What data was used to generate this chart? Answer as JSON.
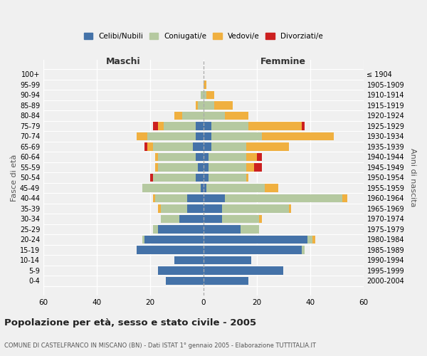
{
  "age_groups": [
    "0-4",
    "5-9",
    "10-14",
    "15-19",
    "20-24",
    "25-29",
    "30-34",
    "35-39",
    "40-44",
    "45-49",
    "50-54",
    "55-59",
    "60-64",
    "65-69",
    "70-74",
    "75-79",
    "80-84",
    "85-89",
    "90-94",
    "95-99",
    "100+"
  ],
  "birth_years": [
    "2000-2004",
    "1995-1999",
    "1990-1994",
    "1985-1989",
    "1980-1984",
    "1975-1979",
    "1970-1974",
    "1965-1969",
    "1960-1964",
    "1955-1959",
    "1950-1954",
    "1945-1949",
    "1940-1944",
    "1935-1939",
    "1930-1934",
    "1925-1929",
    "1920-1924",
    "1915-1919",
    "1910-1914",
    "1905-1909",
    "≤ 1904"
  ],
  "males": {
    "celibi": [
      14,
      17,
      11,
      25,
      22,
      17,
      9,
      6,
      6,
      1,
      3,
      2,
      3,
      4,
      3,
      3,
      0,
      0,
      0,
      0,
      0
    ],
    "coniugati": [
      0,
      0,
      0,
      0,
      1,
      2,
      7,
      10,
      12,
      22,
      16,
      15,
      14,
      15,
      18,
      12,
      8,
      2,
      1,
      0,
      0
    ],
    "vedovi": [
      0,
      0,
      0,
      0,
      0,
      0,
      0,
      1,
      1,
      0,
      0,
      1,
      1,
      2,
      4,
      2,
      3,
      1,
      0,
      0,
      0
    ],
    "divorziati": [
      0,
      0,
      0,
      0,
      0,
      0,
      0,
      0,
      0,
      0,
      1,
      0,
      0,
      1,
      0,
      2,
      0,
      0,
      0,
      0,
      0
    ]
  },
  "females": {
    "nubili": [
      17,
      30,
      18,
      37,
      39,
      14,
      7,
      7,
      8,
      1,
      2,
      2,
      2,
      3,
      3,
      3,
      0,
      0,
      0,
      0,
      0
    ],
    "coniugate": [
      0,
      0,
      0,
      1,
      2,
      7,
      14,
      25,
      44,
      22,
      14,
      14,
      14,
      13,
      19,
      14,
      8,
      4,
      1,
      0,
      0
    ],
    "vedove": [
      0,
      0,
      0,
      0,
      1,
      0,
      1,
      1,
      2,
      5,
      1,
      3,
      4,
      16,
      27,
      20,
      9,
      7,
      3,
      1,
      0
    ],
    "divorziate": [
      0,
      0,
      0,
      0,
      0,
      0,
      0,
      0,
      0,
      0,
      0,
      3,
      2,
      0,
      0,
      1,
      0,
      0,
      0,
      0,
      0
    ]
  },
  "colors": {
    "celibi": "#4472a8",
    "coniugati": "#b5c9a0",
    "vedovi": "#f0b040",
    "divorziati": "#cc2020"
  },
  "title": "Popolazione per età, sesso e stato civile - 2005",
  "subtitle": "COMUNE DI CASTELFRANCO IN MISCANO (BN) - Dati ISTAT 1° gennaio 2005 - Elaborazione TUTTITALIA.IT",
  "xlabel_left": "Maschi",
  "xlabel_right": "Femmine",
  "ylabel_left": "Fasce di età",
  "ylabel_right": "Anni di nascita",
  "xlim": 60,
  "bg_color": "#f0f0f0",
  "legend_labels": [
    "Celibi/Nubili",
    "Coniugati/e",
    "Vedovi/e",
    "Divorziati/e"
  ]
}
